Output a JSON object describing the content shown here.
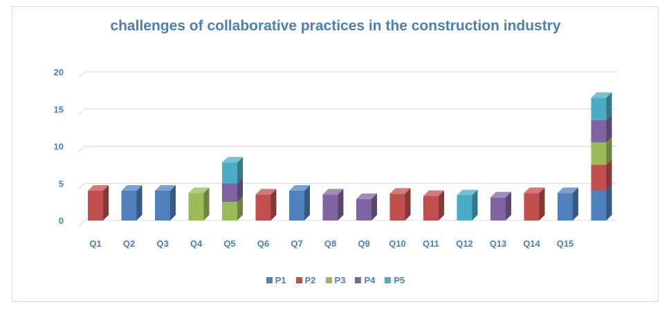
{
  "chart_data": {
    "type": "bar",
    "stacked": true,
    "style": "3d-column",
    "title": "challenges of collaborative practices in the construction industry",
    "xlabel": "",
    "ylabel": "",
    "ylim": [
      0,
      20
    ],
    "yticks": [
      "0",
      "5",
      "10",
      "15",
      "20"
    ],
    "grid": true,
    "legend_position": "bottom",
    "categories": [
      "Q1",
      "Q2",
      "Q3",
      "Q4",
      "Q5",
      "Q6",
      "Q7",
      "Q8",
      "Q9",
      "Q10",
      "Q11",
      "Q12",
      "Q13",
      "Q14",
      "Q15",
      ""
    ],
    "series": [
      {
        "name": "P1",
        "color": "#4f81bd",
        "values": [
          0,
          4,
          4,
          0,
          0,
          0,
          4,
          0,
          0,
          0,
          0,
          0,
          0,
          0,
          3.7,
          4
        ]
      },
      {
        "name": "P2",
        "color": "#c0504d",
        "values": [
          4,
          0,
          0,
          0,
          0,
          3.5,
          0,
          0,
          0,
          3.6,
          3.3,
          0,
          0,
          3.7,
          0,
          3.5
        ]
      },
      {
        "name": "P3",
        "color": "#9bbb59",
        "values": [
          0,
          0,
          0,
          3.7,
          2.5,
          0,
          0,
          0,
          0,
          0,
          0,
          0,
          0,
          0,
          0,
          3
        ]
      },
      {
        "name": "P4",
        "color": "#8064a2",
        "values": [
          0,
          0,
          0,
          0,
          2.5,
          0,
          0,
          3.5,
          2.9,
          0,
          0,
          0,
          3.1,
          0,
          0,
          3
        ]
      },
      {
        "name": "P5",
        "color": "#4bacc6",
        "values": [
          0,
          0,
          0,
          0,
          2.8,
          0,
          0,
          0,
          0,
          0,
          0,
          3.4,
          0,
          0,
          0,
          3
        ]
      }
    ]
  }
}
